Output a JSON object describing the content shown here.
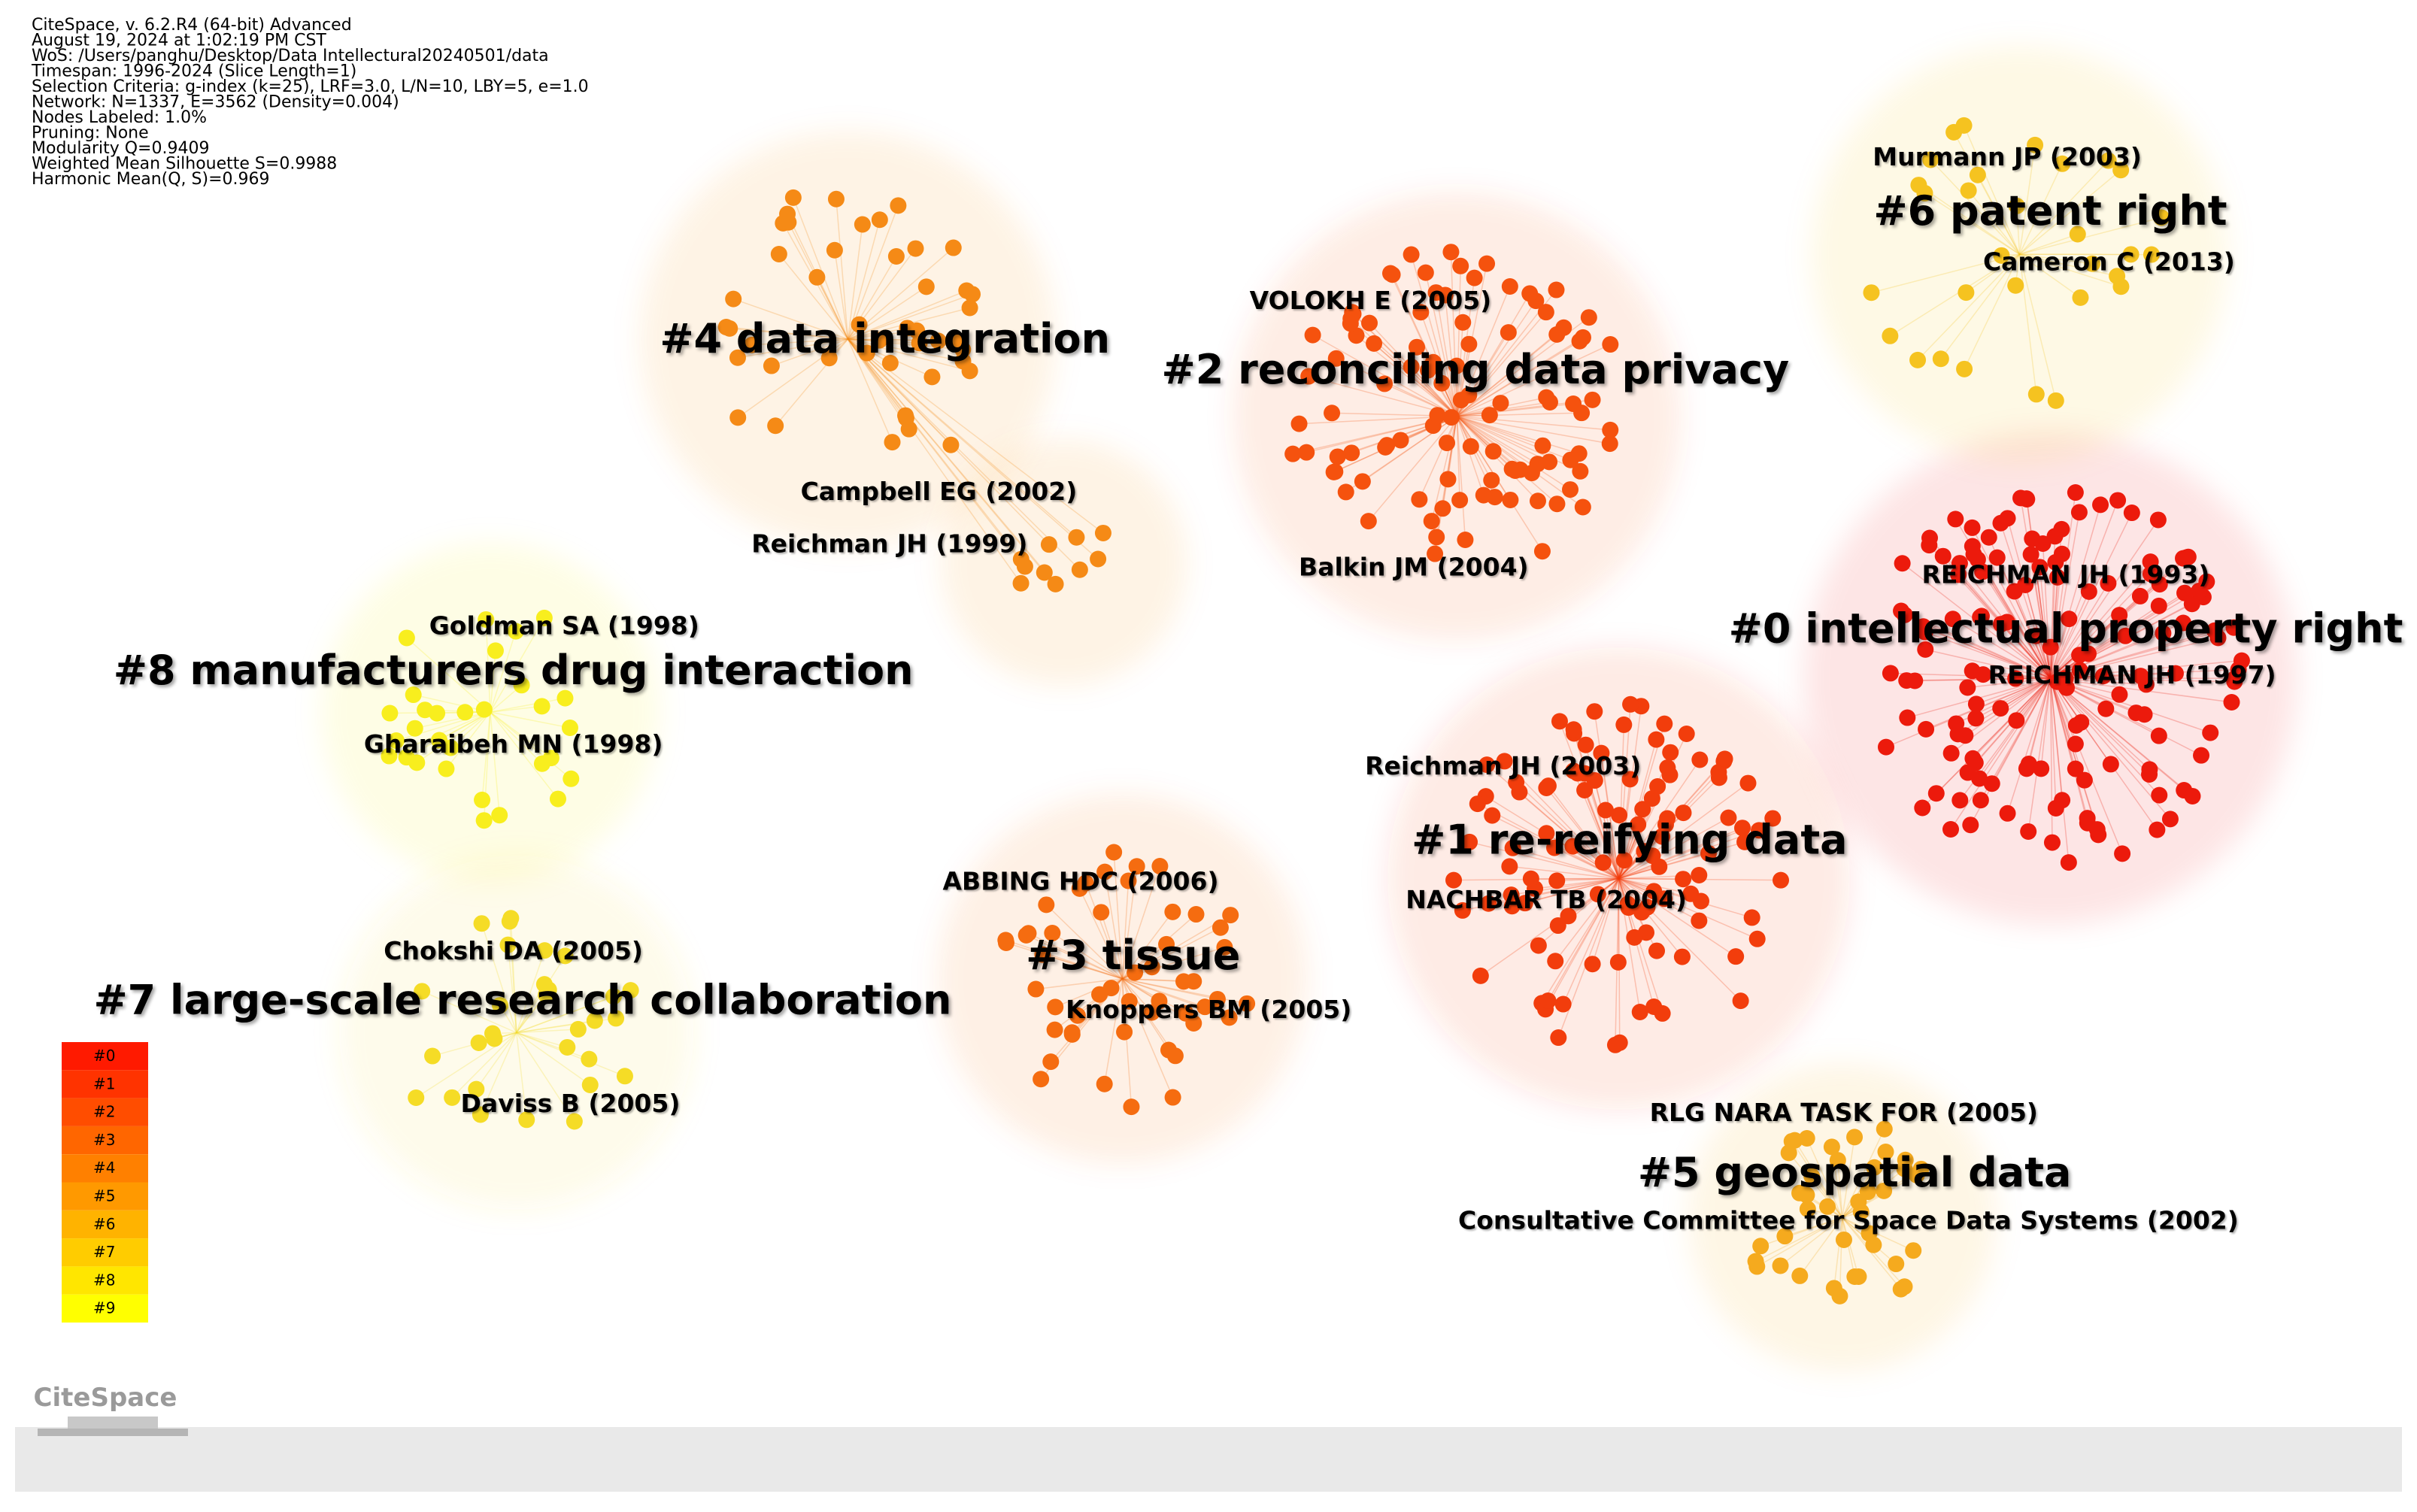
{
  "header_lines": [
    "CiteSpace, v. 6.2.R4 (64-bit) Advanced",
    "August 19, 2024 at 1:02:19 PM CST",
    "WoS: /Users/panghu/Desktop/Data Intellectural20240501/data",
    "Timespan: 1996-2024 (Slice Length=1)",
    "Selection Criteria: g-index (k=25), LRF=3.0, L/N=10, LBY=5, e=1.0",
    "Network: N=1337, E=3562 (Density=0.004)",
    "Nodes Labeled: 1.0%",
    "Pruning: None",
    "Modularity Q=0.9409",
    "Weighted Mean Silhouette S=0.9988",
    "Harmonic Mean(Q, S)=0.969"
  ],
  "clusters": [
    {
      "label": "#0 intellectual property right",
      "color": "#ec1a0c",
      "nodes": [
        "REICHMAN JH (1993)",
        "REICHMAN JH (1997)"
      ]
    },
    {
      "label": "#1 re-reifying data",
      "color": "#f23d0c",
      "nodes": [
        "Reichman JH (2003)",
        "NACHBAR TB (2004)"
      ]
    },
    {
      "label": "#2 reconciling data privacy",
      "color": "#f5520e",
      "nodes": [
        "VOLOKH E (2005)",
        "Balkin JM (2004)"
      ]
    },
    {
      "label": "#3 tissue",
      "color": "#f56c10",
      "nodes": [
        "ABBING HDC (2006)",
        "Knoppers BM (2005)"
      ]
    },
    {
      "label": "#4 data integration",
      "color": "#f58a16",
      "nodes": [
        "Campbell EG (2002)",
        "Reichman JH (1999)"
      ]
    },
    {
      "label": "#5 geospatial data",
      "color": "#f5aa1e",
      "nodes": [
        "RLG NARA TASK FOR (2005)",
        "Consultative Committee for Space Data Systems (2002)"
      ]
    },
    {
      "label": "#6 patent right",
      "color": "#f5c320",
      "nodes": [
        "Murmann JP (2003)",
        "Cameron C (2013)"
      ]
    },
    {
      "label": "#7 large-scale research collaboration",
      "color": "#f5dc26",
      "nodes": [
        "Chokshi DA (2005)",
        "Daviss B (2005)"
      ]
    },
    {
      "label": "#8 manufacturers drug interaction",
      "color": "#f8ee1e",
      "nodes": [
        "Goldman SA (1998)",
        "Gharaibeh MN (1998)"
      ]
    }
  ],
  "legend": [
    {
      "label": "#0",
      "color": "#ff1a00"
    },
    {
      "label": "#1",
      "color": "#ff3300"
    },
    {
      "label": "#2",
      "color": "#ff4d00"
    },
    {
      "label": "#3",
      "color": "#ff6600"
    },
    {
      "label": "#4",
      "color": "#ff8000"
    },
    {
      "label": "#5",
      "color": "#ff9900"
    },
    {
      "label": "#6",
      "color": "#ffb300"
    },
    {
      "label": "#7",
      "color": "#ffcc00"
    },
    {
      "label": "#8",
      "color": "#ffe600"
    },
    {
      "label": "#9",
      "color": "#ffff00"
    }
  ],
  "logo": "CiteSpace"
}
